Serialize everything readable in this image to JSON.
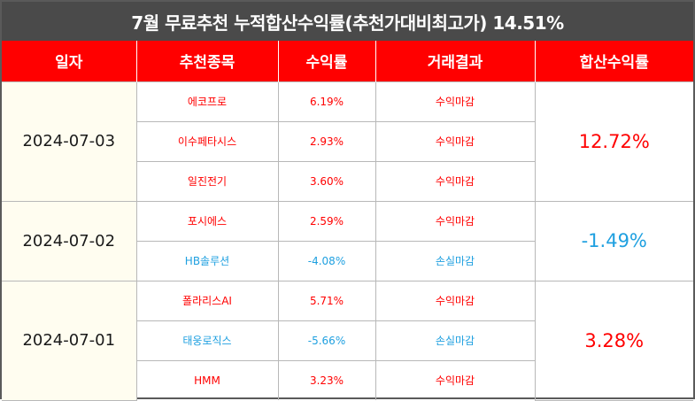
{
  "title": "7월 무료추천 누적합산수익률(추천가대비최고가) 14.51%",
  "headers": [
    "일자",
    "추천종목",
    "수익률",
    "거래결과",
    "합산수익률"
  ],
  "colors": {
    "header_bg": "#ff0000",
    "title_bg": "#4a4a4a",
    "profit": "#ff0000",
    "loss": "#1fa0e0",
    "date_bg": "#fffdf0"
  },
  "groups": [
    {
      "date": "2024-07-03",
      "total": "12.72%",
      "total_status": "profit",
      "rows": [
        {
          "stock": "에코프로",
          "return": "6.19%",
          "result": "수익마감",
          "status": "profit"
        },
        {
          "stock": "이수페타시스",
          "return": "2.93%",
          "result": "수익마감",
          "status": "profit"
        },
        {
          "stock": "일진전기",
          "return": "3.60%",
          "result": "수익마감",
          "status": "profit"
        }
      ]
    },
    {
      "date": "2024-07-02",
      "total": "-1.49%",
      "total_status": "loss",
      "rows": [
        {
          "stock": "포시에스",
          "return": "2.59%",
          "result": "수익마감",
          "status": "profit"
        },
        {
          "stock": "HB솔루션",
          "return": "-4.08%",
          "result": "손실마감",
          "status": "loss"
        }
      ]
    },
    {
      "date": "2024-07-01",
      "total": "3.28%",
      "total_status": "profit",
      "rows": [
        {
          "stock": "폴라리스AI",
          "return": "5.71%",
          "result": "수익마감",
          "status": "profit"
        },
        {
          "stock": "태웅로직스",
          "return": "-5.66%",
          "result": "손실마감",
          "status": "loss"
        },
        {
          "stock": "HMM",
          "return": "3.23%",
          "result": "수익마감",
          "status": "profit"
        }
      ]
    }
  ]
}
